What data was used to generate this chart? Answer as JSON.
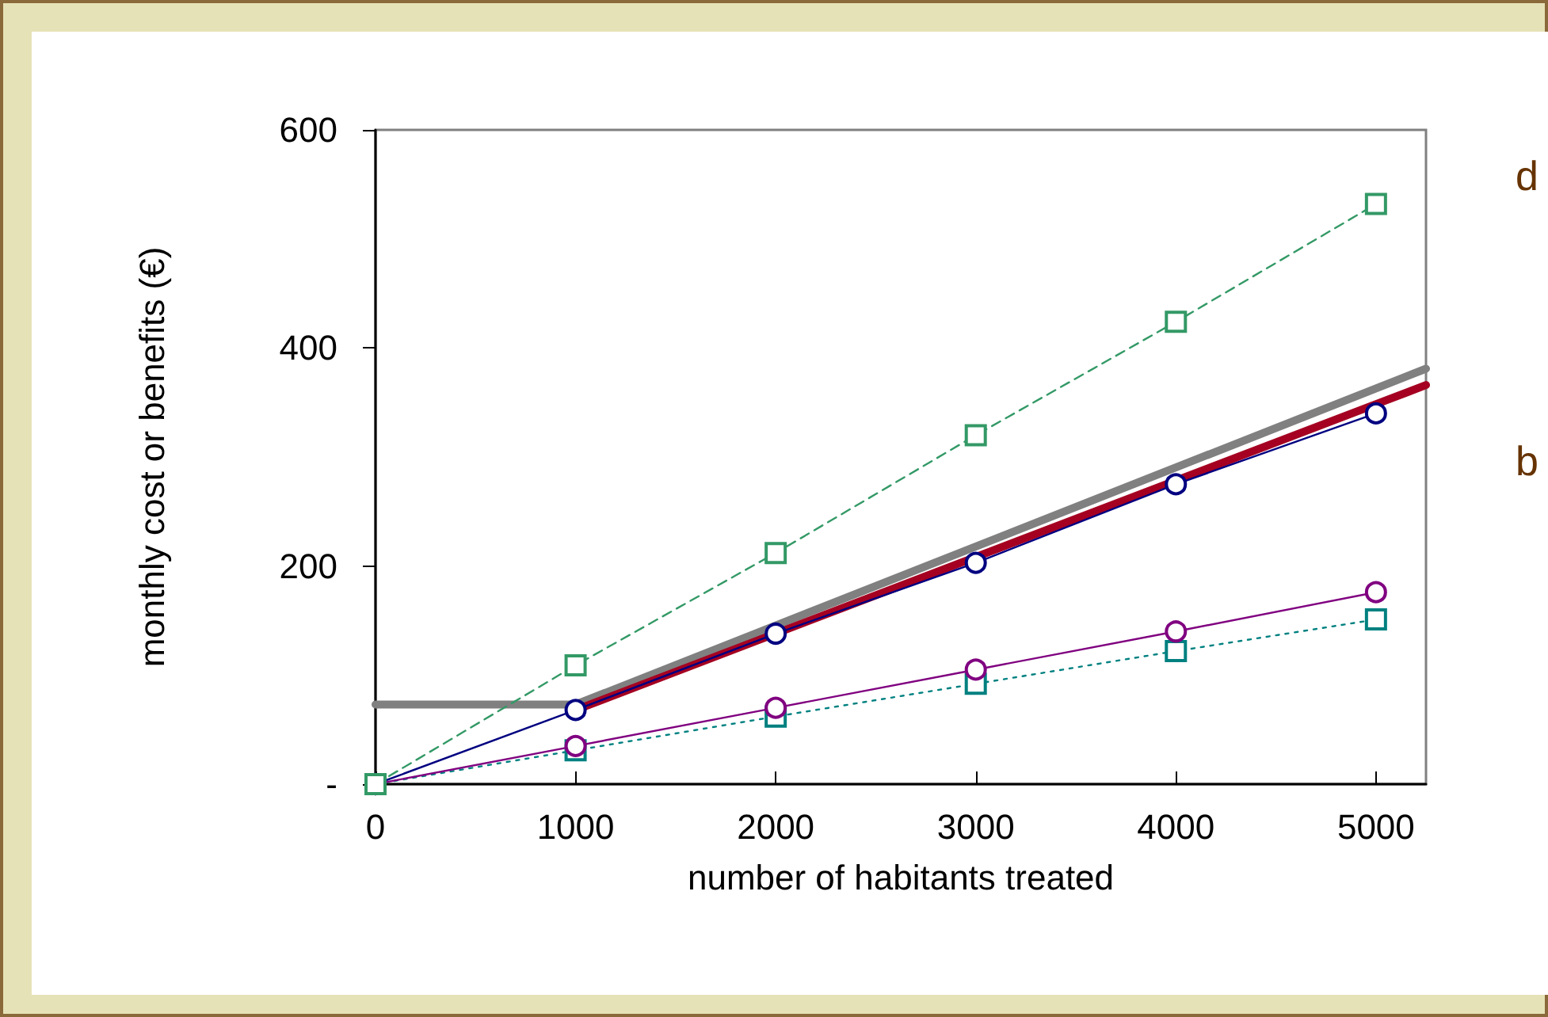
{
  "chart_data": {
    "type": "line",
    "xlabel": "number of habitants treated",
    "ylabel": "monthly cost or benefits (€)",
    "xlim": [
      0,
      5250
    ],
    "xticks": [
      0,
      1000,
      2000,
      3000,
      4000,
      5000
    ],
    "ylim": [
      0,
      600
    ],
    "yticks": [
      {
        "value": 0,
        "label": "-"
      },
      200,
      400,
      600
    ],
    "annotations": [
      "d",
      "b"
    ],
    "series": [
      {
        "color": "#339966",
        "marker": "square",
        "line_style": "dashed",
        "x": [
          0,
          1000,
          2000,
          3000,
          4000,
          5000
        ],
        "values": [
          0,
          109,
          212,
          320,
          424,
          532
        ]
      },
      {
        "color": "#808080",
        "marker": "none",
        "line_style": "solid",
        "x": [
          0,
          1000,
          5250
        ],
        "values": [
          73,
          73,
          381
        ]
      },
      {
        "color": "#000080",
        "marker": "circle",
        "line_style": "solid",
        "x": [
          0,
          1000,
          2000,
          3000,
          4000,
          5000
        ],
        "values": [
          0,
          68,
          138,
          203,
          275,
          340
        ]
      },
      {
        "color": "#a50021",
        "marker": "none",
        "line_style": "solid",
        "x": [
          1000,
          5250
        ],
        "values": [
          68,
          366
        ]
      },
      {
        "color": "#800080",
        "marker": "circle",
        "line_style": "solid",
        "x": [
          0,
          1000,
          2000,
          3000,
          4000,
          5000
        ],
        "values": [
          0,
          35,
          70,
          105,
          140,
          176
        ]
      },
      {
        "color": "#008080",
        "marker": "square",
        "line_style": "dotted",
        "x": [
          0,
          1000,
          2000,
          3000,
          4000,
          5000
        ],
        "values": [
          0,
          31,
          62,
          92,
          122,
          151
        ]
      }
    ]
  }
}
